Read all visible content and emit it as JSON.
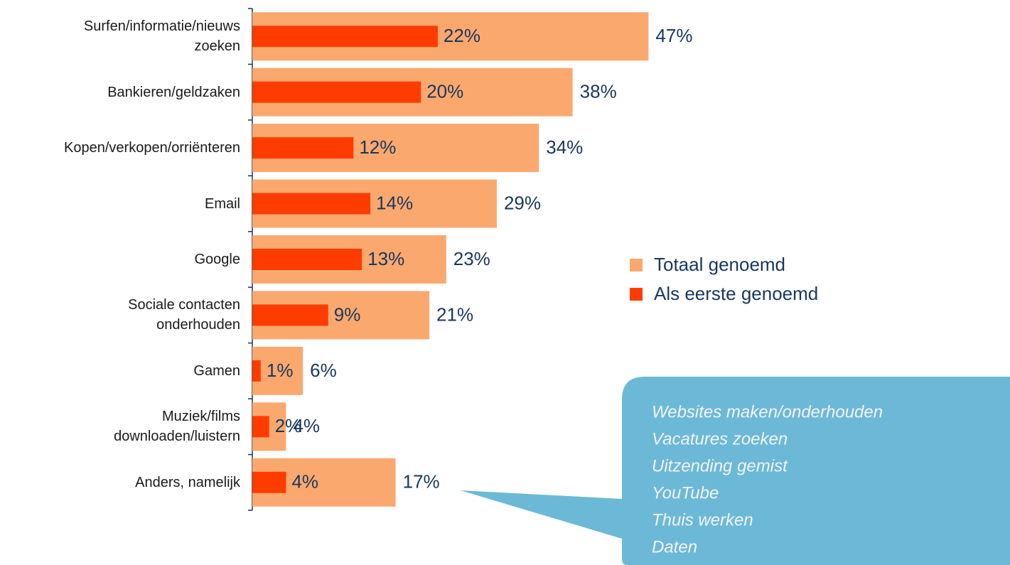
{
  "chart_data": {
    "type": "bar",
    "orientation": "horizontal",
    "categories": [
      "Surfen/informatie/nieuws\nzoeken",
      "Bankieren/geldzaken",
      "Kopen/verkopen/orriënteren",
      "Email",
      "Google",
      "Sociale contacten\nonderhouden",
      "Gamen",
      "Muziek/films\ndownloaden/luistern",
      "Anders, namelijk"
    ],
    "series": [
      {
        "name": "Totaal genoemd",
        "color": "#fba86f",
        "values": [
          47,
          38,
          34,
          29,
          23,
          21,
          6,
          4,
          17
        ],
        "value_labels": [
          "47%",
          "38%",
          "34%",
          "29%",
          "23%",
          "21%",
          "6%",
          "4%",
          "17%"
        ]
      },
      {
        "name": "Als eerste genoemd",
        "color": "#ff3c00",
        "values": [
          22,
          20,
          12,
          14,
          13,
          9,
          1,
          2,
          4
        ],
        "value_labels": [
          "22%",
          "20%",
          "12%",
          "14%",
          "13%",
          "9%",
          "1%",
          "2%",
          "4%"
        ]
      }
    ],
    "xlim": [
      0,
      50
    ],
    "legend": "right",
    "annotation": [
      "Websites maken/onderhouden",
      "Vacatures zoeken",
      "Uitzending gemist",
      "YouTube",
      "Thuis werken",
      "Daten"
    ]
  }
}
